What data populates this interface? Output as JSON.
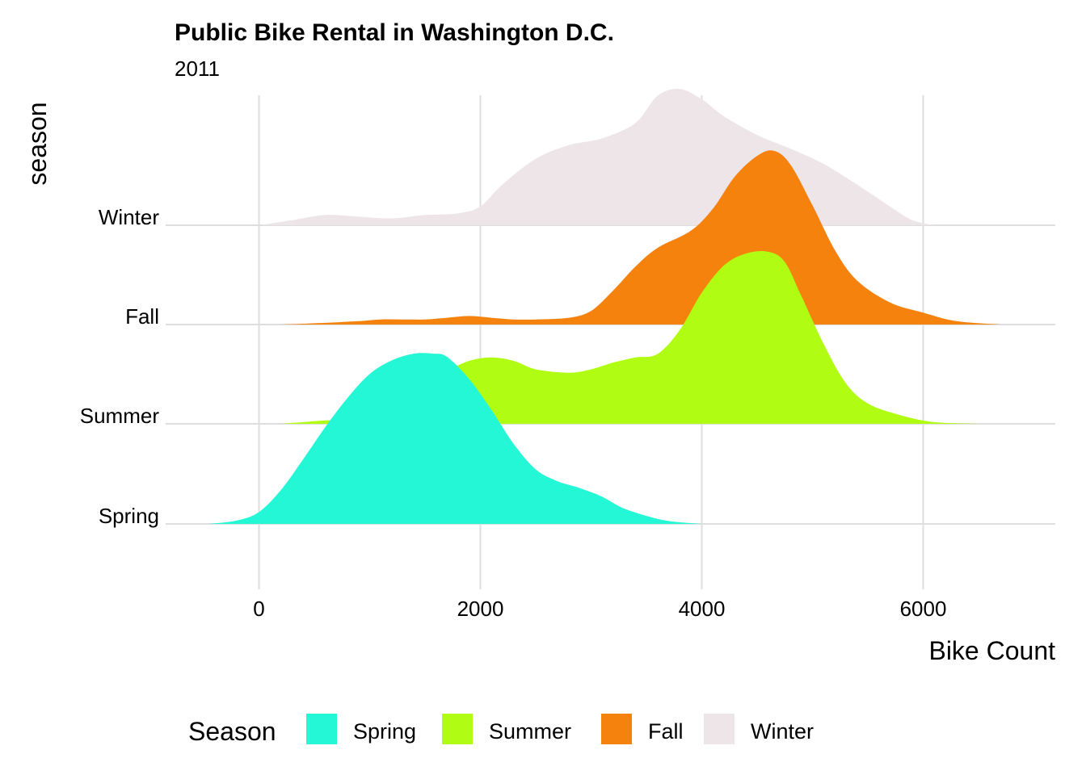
{
  "chart_data": {
    "type": "ridgeline",
    "title": "Public Bike Rental in Washington D.C.",
    "subtitle": "2011",
    "xlabel": "Bike Count",
    "ylabel": "season",
    "xlim": [
      -950,
      7250
    ],
    "x_ticks": [
      0,
      2000,
      4000,
      6000
    ],
    "x_tick_labels": [
      "0",
      "2000",
      "4000",
      "6000"
    ],
    "grid": true,
    "legend": {
      "title": "Season",
      "placement": "bottom",
      "labels": [
        "Spring",
        "Summer",
        "Fall",
        "Winter"
      ]
    },
    "series": [
      {
        "name": "Spring",
        "color": "#23F7D6",
        "density_points": [
          [
            -450,
            0
          ],
          [
            -200,
            0.02
          ],
          [
            0,
            0.07
          ],
          [
            200,
            0.2
          ],
          [
            400,
            0.38
          ],
          [
            600,
            0.57
          ],
          [
            800,
            0.74
          ],
          [
            1000,
            0.88
          ],
          [
            1200,
            0.96
          ],
          [
            1400,
            1.0
          ],
          [
            1570,
            1.0
          ],
          [
            1700,
            0.98
          ],
          [
            1900,
            0.85
          ],
          [
            2100,
            0.67
          ],
          [
            2300,
            0.47
          ],
          [
            2500,
            0.32
          ],
          [
            2700,
            0.25
          ],
          [
            2900,
            0.21
          ],
          [
            3100,
            0.16
          ],
          [
            3300,
            0.09
          ],
          [
            3600,
            0.03
          ],
          [
            3800,
            0.01
          ],
          [
            4000,
            0
          ]
        ]
      },
      {
        "name": "Summer",
        "color": "#B1FC13",
        "density_points": [
          [
            200,
            0
          ],
          [
            400,
            0.01
          ],
          [
            600,
            0.02
          ],
          [
            900,
            0.03
          ],
          [
            1100,
            0.07
          ],
          [
            1300,
            0.14
          ],
          [
            1500,
            0.24
          ],
          [
            1700,
            0.31
          ],
          [
            1900,
            0.37
          ],
          [
            2100,
            0.39
          ],
          [
            2300,
            0.37
          ],
          [
            2500,
            0.32
          ],
          [
            2800,
            0.3
          ],
          [
            3000,
            0.32
          ],
          [
            3200,
            0.36
          ],
          [
            3400,
            0.39
          ],
          [
            3600,
            0.41
          ],
          [
            3800,
            0.55
          ],
          [
            4000,
            0.77
          ],
          [
            4200,
            0.93
          ],
          [
            4400,
            1.0
          ],
          [
            4600,
            1.01
          ],
          [
            4750,
            0.95
          ],
          [
            4900,
            0.75
          ],
          [
            5100,
            0.47
          ],
          [
            5300,
            0.24
          ],
          [
            5500,
            0.12
          ],
          [
            5800,
            0.05
          ],
          [
            6100,
            0.01
          ],
          [
            6500,
            0
          ]
        ]
      },
      {
        "name": "Fall",
        "color": "#F6820E",
        "density_points": [
          [
            200,
            0
          ],
          [
            600,
            0.01
          ],
          [
            900,
            0.02
          ],
          [
            1100,
            0.03
          ],
          [
            1300,
            0.03
          ],
          [
            1500,
            0.03
          ],
          [
            1700,
            0.04
          ],
          [
            1900,
            0.05
          ],
          [
            2100,
            0.04
          ],
          [
            2300,
            0.03
          ],
          [
            2500,
            0.03
          ],
          [
            2800,
            0.04
          ],
          [
            3000,
            0.08
          ],
          [
            3200,
            0.2
          ],
          [
            3400,
            0.34
          ],
          [
            3600,
            0.45
          ],
          [
            3900,
            0.55
          ],
          [
            4100,
            0.68
          ],
          [
            4300,
            0.87
          ],
          [
            4500,
            0.99
          ],
          [
            4650,
            1.02
          ],
          [
            4800,
            0.94
          ],
          [
            5000,
            0.7
          ],
          [
            5200,
            0.44
          ],
          [
            5400,
            0.26
          ],
          [
            5700,
            0.13
          ],
          [
            6000,
            0.07
          ],
          [
            6300,
            0.02
          ],
          [
            6700,
            0
          ]
        ]
      },
      {
        "name": "Winter",
        "color": "#EDE5E8",
        "density_points": [
          [
            0,
            0
          ],
          [
            300,
            0.03
          ],
          [
            600,
            0.06
          ],
          [
            900,
            0.05
          ],
          [
            1200,
            0.04
          ],
          [
            1500,
            0.06
          ],
          [
            1800,
            0.07
          ],
          [
            2000,
            0.11
          ],
          [
            2200,
            0.24
          ],
          [
            2500,
            0.39
          ],
          [
            2800,
            0.47
          ],
          [
            3100,
            0.51
          ],
          [
            3400,
            0.6
          ],
          [
            3600,
            0.76
          ],
          [
            3800,
            0.8
          ],
          [
            4000,
            0.74
          ],
          [
            4200,
            0.64
          ],
          [
            4500,
            0.53
          ],
          [
            4800,
            0.45
          ],
          [
            5100,
            0.36
          ],
          [
            5400,
            0.24
          ],
          [
            5700,
            0.11
          ],
          [
            5900,
            0.03
          ],
          [
            6100,
            0
          ]
        ]
      }
    ]
  }
}
